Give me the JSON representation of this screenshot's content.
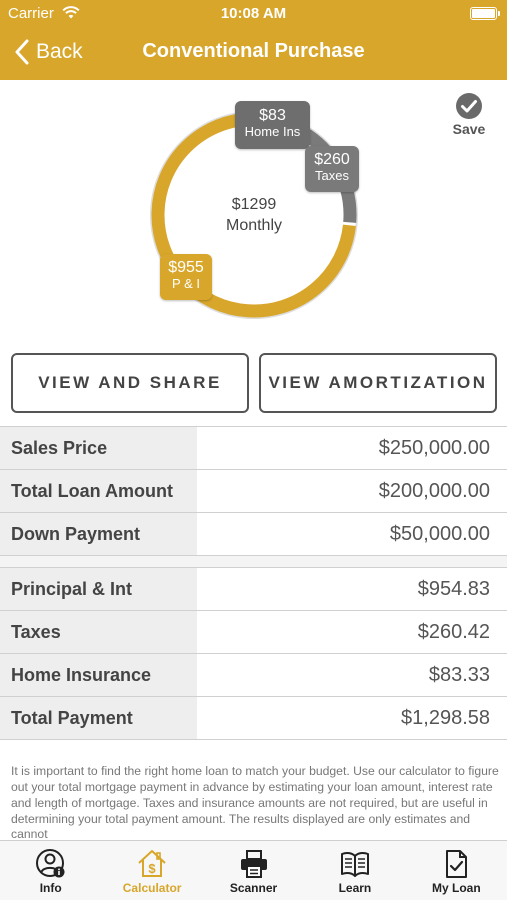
{
  "status_bar": {
    "carrier": "Carrier",
    "time": "10:08 AM"
  },
  "nav": {
    "back_label": "Back",
    "title": "Conventional Purchase"
  },
  "colors": {
    "brand": "#d8a62a",
    "gray_dark": "#6e6e6e",
    "gray_mid": "#7a7a7a",
    "track": "#dddddd"
  },
  "chart_data": {
    "type": "pie",
    "center_value": "$1299",
    "center_label": "Monthly",
    "slices": [
      {
        "label": "P & I",
        "display_value": "$955",
        "value": 954.83,
        "color": "#d8a62a"
      },
      {
        "label": "Taxes",
        "display_value": "$260",
        "value": 260.42,
        "color": "#7a7a7a"
      },
      {
        "label": "Home Ins",
        "display_value": "$83",
        "value": 83.33,
        "color": "#6e6e6e"
      }
    ]
  },
  "save": {
    "label": "Save",
    "icon": "checkmark-circle-icon"
  },
  "buttons": {
    "share": "VIEW AND SHARE",
    "amortization": "VIEW AMORTIZATION"
  },
  "loan_rows": [
    {
      "label": "Sales Price",
      "value": "$250,000.00"
    },
    {
      "label": "Total Loan Amount",
      "value": "$200,000.00"
    },
    {
      "label": "Down Payment",
      "value": "$50,000.00"
    }
  ],
  "payment_rows": [
    {
      "label": "Principal & Int",
      "value": "$954.83"
    },
    {
      "label": "Taxes",
      "value": "$260.42"
    },
    {
      "label": "Home Insurance",
      "value": "$83.33"
    },
    {
      "label": "Total Payment",
      "value": "$1,298.58"
    }
  ],
  "disclaimer": "It is important to find the right home loan to match your budget. Use our calculator to figure out your total mortgage payment in advance by estimating your loan amount, interest rate and length of mortgage. Taxes and insurance amounts are not required, but are useful in determining your total payment amount.  The results displayed are only estimates and cannot",
  "tabs": [
    {
      "label": "Info",
      "icon": "user-info-icon"
    },
    {
      "label": "Calculator",
      "icon": "house-dollar-icon"
    },
    {
      "label": "Scanner",
      "icon": "printer-icon"
    },
    {
      "label": "Learn",
      "icon": "book-icon"
    },
    {
      "label": "My Loan",
      "icon": "document-check-icon"
    }
  ]
}
